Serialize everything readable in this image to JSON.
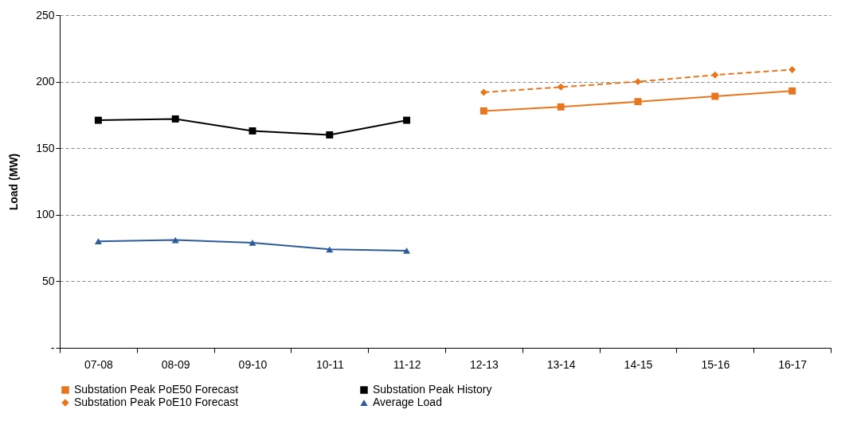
{
  "chart_data": {
    "type": "line",
    "ylabel": "Load (MW)",
    "categories": [
      "07-08",
      "08-09",
      "09-10",
      "10-11",
      "11-12",
      "12-13",
      "13-14",
      "14-15",
      "15-16",
      "16-17"
    ],
    "series": [
      {
        "name": "Substation Peak PoE50 Forecast",
        "color": "#e8761e",
        "marker": "square",
        "line_style": "solid",
        "values": [
          null,
          null,
          null,
          null,
          null,
          178,
          181,
          185,
          189,
          193
        ]
      },
      {
        "name": "Substation Peak History",
        "color": "#000000",
        "marker": "square",
        "line_style": "solid",
        "values": [
          171,
          172,
          163,
          160,
          171,
          null,
          null,
          null,
          null,
          null
        ]
      },
      {
        "name": "Substation Peak PoE10 Forecast",
        "color": "#e8761e",
        "marker": "diamond",
        "line_style": "dashed",
        "values": [
          null,
          null,
          null,
          null,
          null,
          192,
          196,
          200,
          205,
          209
        ]
      },
      {
        "name": "Average Load",
        "color": "#2e5c9a",
        "marker": "triangle",
        "line_style": "solid",
        "values": [
          80,
          81,
          79,
          74,
          73,
          null,
          null,
          null,
          null,
          null
        ]
      }
    ],
    "ylim": [
      0,
      250
    ],
    "yticks": [
      {
        "value": 0,
        "label": "-"
      },
      50,
      100,
      150,
      200,
      250
    ],
    "grid": "y",
    "legend": "bottom"
  }
}
